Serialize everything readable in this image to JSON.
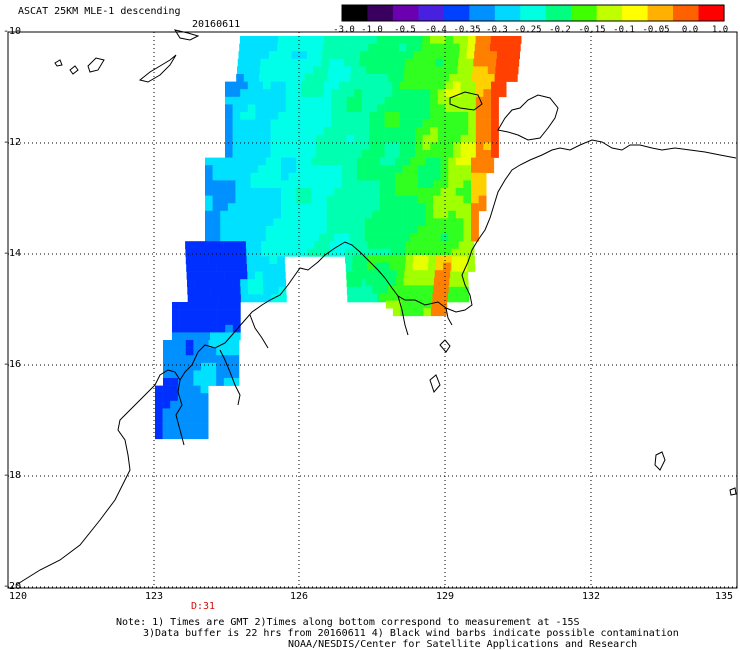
{
  "header": {
    "title": "ASCAT 25KM MLE-1 descending",
    "date": "20160611"
  },
  "colorbar": {
    "labels": [
      "-3.0",
      "-1.0",
      "-0.5",
      "-0.4",
      "-0.35",
      "-0.3",
      "-0.25",
      "-0.2",
      "-0.15",
      "-0.1",
      "-0.05",
      "0.0",
      "1.0"
    ],
    "colors": [
      "#000000",
      "#3a0060",
      "#6a00b0",
      "#4a20e0",
      "#0040ff",
      "#0090ff",
      "#00d8ff",
      "#00ffe0",
      "#00ff80",
      "#40ff00",
      "#c0ff00",
      "#ffff00",
      "#ffb000",
      "#ff6000",
      "#ff0000"
    ]
  },
  "axes": {
    "lat_labels": [
      "-10",
      "-12",
      "-14",
      "-16",
      "-18",
      "-20"
    ],
    "lon_labels": [
      "120",
      "123",
      "126",
      "129",
      "132",
      "135"
    ]
  },
  "time_marker": "D:31",
  "notes": {
    "line1": "Note: 1) Times are GMT 2)Times along bottom correspond to measurement at -15S",
    "line2": "3)Data buffer is 22 hrs from 20160611 4) Black wind barbs indicate possible contamination",
    "line3": "NOAA/NESDIS/Center for Satellite Applications and Research"
  }
}
